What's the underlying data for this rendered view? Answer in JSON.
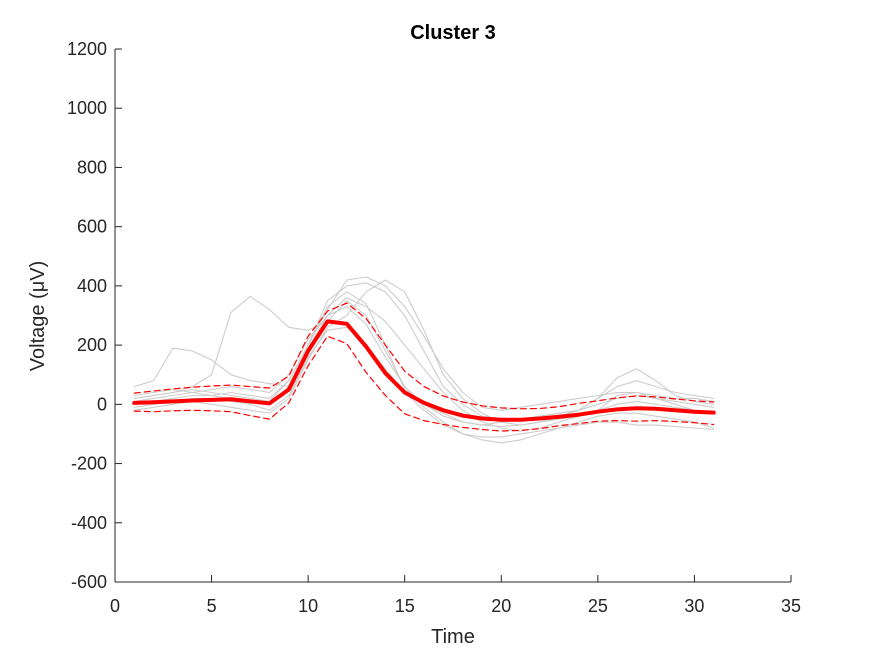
{
  "chart_data": {
    "type": "line",
    "title": "Cluster 3",
    "xlabel": "Time",
    "ylabel": "Voltage (μV)",
    "xlim": [
      0,
      35
    ],
    "ylim": [
      -600,
      1200
    ],
    "xticks": [
      0,
      5,
      10,
      15,
      20,
      25,
      30,
      35
    ],
    "yticks": [
      -600,
      -400,
      -200,
      0,
      200,
      400,
      600,
      800,
      1000,
      1200
    ],
    "x": [
      1,
      2,
      3,
      4,
      5,
      6,
      7,
      8,
      9,
      10,
      11,
      12,
      13,
      14,
      15,
      16,
      17,
      18,
      19,
      20,
      21,
      22,
      23,
      24,
      25,
      26,
      27,
      28,
      29,
      30,
      31
    ],
    "series": [
      {
        "role": "mean",
        "color": "#ff0000",
        "values": [
          5,
          7,
          10,
          13,
          15,
          17,
          10,
          3,
          50,
          180,
          280,
          272,
          195,
          105,
          40,
          5,
          -20,
          -38,
          -48,
          -52,
          -52,
          -48,
          -42,
          -35,
          -25,
          -17,
          -13,
          -15,
          -20,
          -25,
          -28
        ]
      },
      {
        "role": "upper",
        "color": "#ff0000",
        "values": [
          38,
          45,
          52,
          58,
          62,
          65,
          60,
          55,
          95,
          230,
          315,
          342,
          290,
          200,
          112,
          60,
          28,
          8,
          -5,
          -12,
          -15,
          -14,
          -8,
          3,
          12,
          22,
          28,
          25,
          18,
          12,
          8
        ]
      },
      {
        "role": "lower",
        "color": "#ff0000",
        "values": [
          -23,
          -25,
          -22,
          -20,
          -22,
          -25,
          -38,
          -50,
          5,
          130,
          230,
          205,
          108,
          30,
          -32,
          -55,
          -68,
          -78,
          -85,
          -90,
          -88,
          -82,
          -72,
          -65,
          -57,
          -55,
          -57,
          -55,
          -58,
          -62,
          -68
        ]
      },
      {
        "role": "waveform",
        "color": "#cccccc",
        "values": [
          60,
          80,
          190,
          180,
          150,
          100,
          80,
          70,
          60,
          200,
          330,
          380,
          340,
          200,
          50,
          0,
          -30,
          -60,
          -70,
          -60,
          -50,
          -40,
          -30,
          -20,
          20,
          60,
          80,
          60,
          40,
          30,
          20
        ]
      },
      {
        "role": "waveform",
        "color": "#cccccc",
        "values": [
          20,
          30,
          40,
          60,
          100,
          310,
          365,
          320,
          260,
          250,
          280,
          350,
          300,
          180,
          60,
          0,
          -40,
          -60,
          -70,
          -75,
          -70,
          -60,
          -50,
          -40,
          -20,
          30,
          40,
          20,
          0,
          -20,
          -30
        ]
      },
      {
        "role": "waveform",
        "color": "#cccccc",
        "values": [
          0,
          10,
          20,
          30,
          30,
          40,
          30,
          20,
          80,
          200,
          350,
          400,
          410,
          380,
          300,
          180,
          60,
          0,
          -40,
          -50,
          -50,
          -40,
          -30,
          -20,
          20,
          90,
          120,
          80,
          30,
          10,
          0
        ]
      },
      {
        "role": "waveform",
        "color": "#cccccc",
        "values": [
          -20,
          -10,
          0,
          10,
          0,
          -10,
          -20,
          -30,
          20,
          150,
          260,
          300,
          380,
          420,
          380,
          250,
          100,
          20,
          -30,
          -60,
          -70,
          -60,
          -40,
          -20,
          0,
          20,
          30,
          20,
          10,
          0,
          -10
        ]
      },
      {
        "role": "waveform",
        "color": "#cccccc",
        "values": [
          30,
          40,
          50,
          40,
          30,
          20,
          10,
          0,
          60,
          190,
          300,
          330,
          270,
          160,
          60,
          -10,
          -60,
          -100,
          -120,
          -130,
          -120,
          -100,
          -80,
          -60,
          -40,
          -30,
          -30,
          -40,
          -50,
          -60,
          -80
        ]
      },
      {
        "role": "waveform",
        "color": "#cccccc",
        "values": [
          10,
          20,
          30,
          40,
          50,
          60,
          50,
          40,
          100,
          220,
          300,
          360,
          330,
          280,
          200,
          120,
          40,
          -20,
          -60,
          -80,
          -90,
          -80,
          -60,
          -40,
          -20,
          0,
          10,
          0,
          -10,
          -20,
          -30
        ]
      },
      {
        "role": "waveform",
        "color": "#cccccc",
        "values": [
          -10,
          0,
          10,
          20,
          20,
          10,
          0,
          -20,
          30,
          160,
          250,
          260,
          200,
          120,
          40,
          -20,
          -70,
          -100,
          -110,
          -110,
          -100,
          -90,
          -80,
          -70,
          -60,
          -60,
          -70,
          -70,
          -75,
          -80,
          -85
        ]
      },
      {
        "role": "waveform",
        "color": "#cccccc",
        "values": [
          20,
          30,
          40,
          50,
          40,
          30,
          20,
          10,
          80,
          200,
          320,
          420,
          430,
          400,
          330,
          230,
          120,
          40,
          -10,
          -20,
          -10,
          0,
          10,
          20,
          30,
          40,
          40,
          30,
          20,
          20,
          10
        ]
      }
    ]
  }
}
